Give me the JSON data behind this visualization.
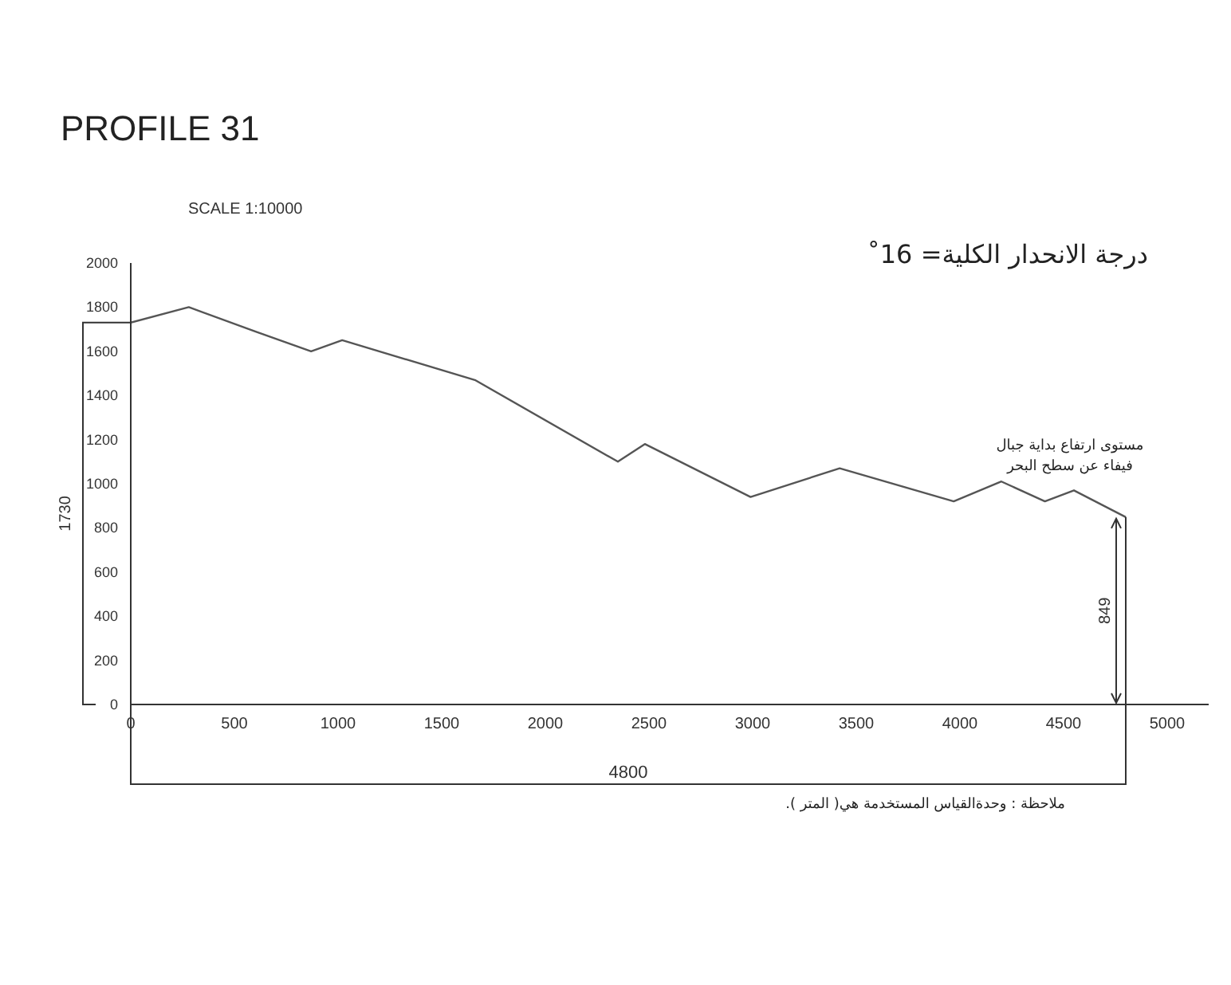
{
  "chart_data": {
    "type": "line",
    "title": "PROFILE 31",
    "subtitle": "SCALE 1:10000",
    "x": [
      0,
      280,
      600,
      870,
      1020,
      1660,
      2350,
      2480,
      2990,
      3420,
      3970,
      4200,
      4410,
      4550,
      4800
    ],
    "series": [
      {
        "color": "#555555",
        "values": [
          1730,
          1800,
          1690,
          1600,
          1650,
          1470,
          1100,
          1180,
          940,
          1070,
          920,
          1010,
          920,
          970,
          849
        ]
      }
    ],
    "xlim": [
      0,
      5200
    ],
    "xticks": [
      0,
      500,
      1000,
      1500,
      2000,
      2500,
      3000,
      3500,
      4000,
      4500,
      5000
    ],
    "ylim": [
      0,
      2000
    ],
    "yticks": [
      0,
      200,
      400,
      600,
      800,
      1000,
      1200,
      1400,
      1600,
      1800,
      2000
    ],
    "marker": "none",
    "line_style": "solid",
    "annotations": [
      "درجة الانحدار الكلية= 16˚",
      "مستوى ارتفاع بداية جبال فيفاء عن سطح البحر",
      "1730",
      "849",
      "4800",
      "ملاحظة : وحدةالقياس المستخدمة هي( المتر )."
    ]
  }
}
